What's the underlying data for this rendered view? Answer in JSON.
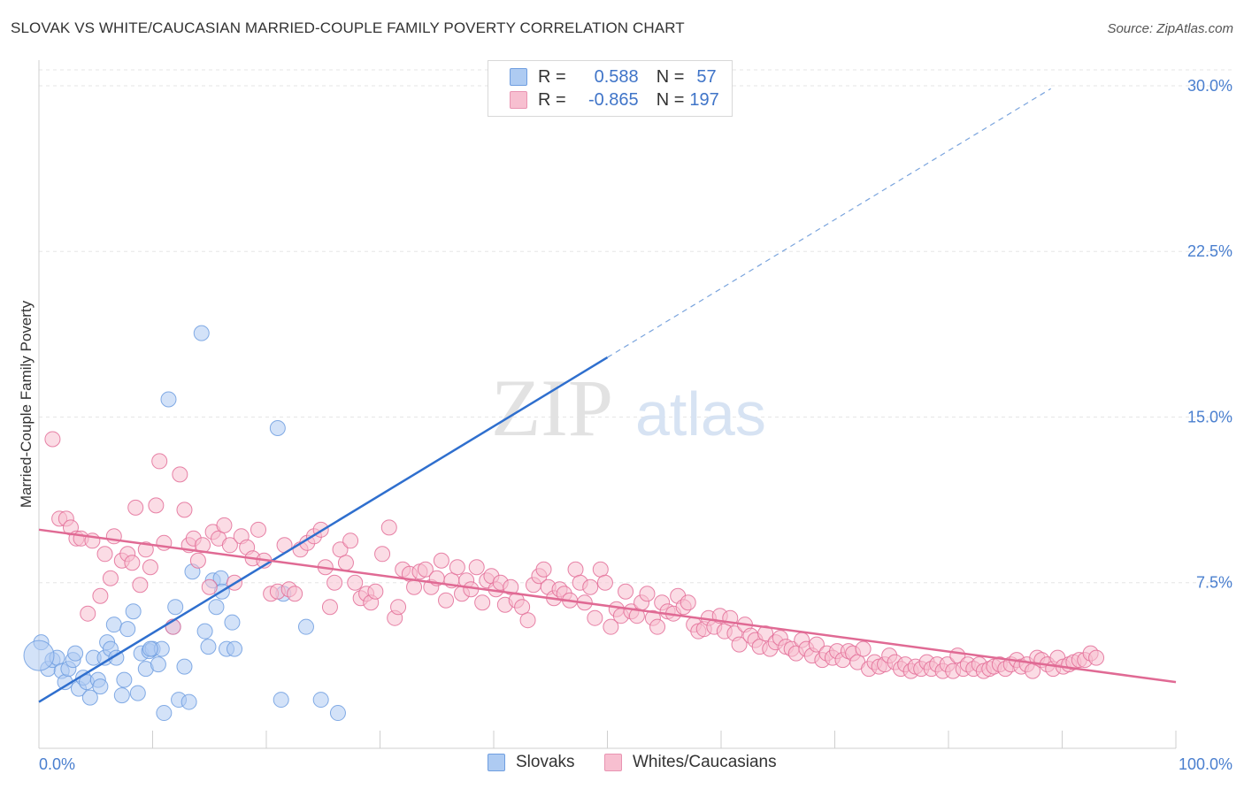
{
  "title": "SLOVAK VS WHITE/CAUCASIAN MARRIED-COUPLE FAMILY POVERTY CORRELATION CHART",
  "source": "Source: ZipAtlas.com",
  "watermark": {
    "zip": "ZIP",
    "atlas": "atlas"
  },
  "legend": {
    "r_label": "R =",
    "n_label": "N =",
    "series": [
      {
        "name": "Slovaks",
        "r": "0.588",
        "n": "57",
        "fill": "#aecbf2",
        "stroke": "#6f9ee0"
      },
      {
        "name": "Whites/Caucasians",
        "r": "-0.865",
        "n": "197",
        "fill": "#f7bfd0",
        "stroke": "#e994b2"
      }
    ]
  },
  "chart_data": {
    "type": "scatter",
    "title": "SLOVAK VS WHITE/CAUCASIAN MARRIED-COUPLE FAMILY POVERTY CORRELATION CHART",
    "xlabel": "",
    "ylabel": "Married-Couple Family Poverty",
    "xlim": [
      0,
      100
    ],
    "ylim": [
      0,
      30
    ],
    "x_tick_labels": [
      "0.0%",
      "100.0%"
    ],
    "y_ticks": [
      7.5,
      15.0,
      22.5,
      30.0
    ],
    "y_tick_labels": [
      "7.5%",
      "15.0%",
      "22.5%",
      "30.0%"
    ],
    "grid": true,
    "series": [
      {
        "name": "Slovaks",
        "color": "#6f9ee0",
        "fill": "#aecbf2",
        "trend": {
          "x0": 0,
          "y0": 2.1,
          "x1": 50,
          "y1": 17.7,
          "dashed_to_x": 89
        },
        "points": [
          [
            0.2,
            4.8
          ],
          [
            0.8,
            3.6
          ],
          [
            1.2,
            4.0
          ],
          [
            1.6,
            4.1
          ],
          [
            2.0,
            3.5
          ],
          [
            2.3,
            3.0
          ],
          [
            2.6,
            3.6
          ],
          [
            3.0,
            4.0
          ],
          [
            3.2,
            4.3
          ],
          [
            3.5,
            2.7
          ],
          [
            3.9,
            3.2
          ],
          [
            4.2,
            3.0
          ],
          [
            4.5,
            2.3
          ],
          [
            4.8,
            4.1
          ],
          [
            5.2,
            3.1
          ],
          [
            5.4,
            2.8
          ],
          [
            5.8,
            4.1
          ],
          [
            6.0,
            4.8
          ],
          [
            6.3,
            4.5
          ],
          [
            6.6,
            5.6
          ],
          [
            6.8,
            4.1
          ],
          [
            7.3,
            2.4
          ],
          [
            7.5,
            3.1
          ],
          [
            7.8,
            5.4
          ],
          [
            8.3,
            6.2
          ],
          [
            8.7,
            2.5
          ],
          [
            9.0,
            4.3
          ],
          [
            9.4,
            3.6
          ],
          [
            9.7,
            4.4
          ],
          [
            10.0,
            4.5
          ],
          [
            10.5,
            3.8
          ],
          [
            10.8,
            4.5
          ],
          [
            11.0,
            1.6
          ],
          [
            11.4,
            15.8
          ],
          [
            11.8,
            5.5
          ],
          [
            12.0,
            6.4
          ],
          [
            12.3,
            2.2
          ],
          [
            12.8,
            3.7
          ],
          [
            13.5,
            8.0
          ],
          [
            14.3,
            18.8
          ],
          [
            14.6,
            5.3
          ],
          [
            14.9,
            4.6
          ],
          [
            15.3,
            7.6
          ],
          [
            15.6,
            6.4
          ],
          [
            16.0,
            7.7
          ],
          [
            16.5,
            4.5
          ],
          [
            17.0,
            5.7
          ],
          [
            21.0,
            14.5
          ],
          [
            21.3,
            2.2
          ],
          [
            21.5,
            7.0
          ],
          [
            23.5,
            5.5
          ],
          [
            24.8,
            2.2
          ],
          [
            26.3,
            1.6
          ],
          [
            13.2,
            2.1
          ],
          [
            17.2,
            4.5
          ],
          [
            16.1,
            7.1
          ],
          [
            9.8,
            4.5
          ]
        ]
      },
      {
        "name": "Whites/Caucasians",
        "color": "#e36d98",
        "fill": "#f7bfd0",
        "trend": {
          "x0": 0,
          "y0": 9.9,
          "x1": 100,
          "y1": 3.0
        },
        "points": [
          [
            1.2,
            14.0
          ],
          [
            1.8,
            10.4
          ],
          [
            2.4,
            10.4
          ],
          [
            2.8,
            10.0
          ],
          [
            3.3,
            9.5
          ],
          [
            3.7,
            9.5
          ],
          [
            4.3,
            6.1
          ],
          [
            4.7,
            9.4
          ],
          [
            5.4,
            6.9
          ],
          [
            5.8,
            8.8
          ],
          [
            6.3,
            7.7
          ],
          [
            6.6,
            9.6
          ],
          [
            7.3,
            8.5
          ],
          [
            7.8,
            8.8
          ],
          [
            8.2,
            8.4
          ],
          [
            8.5,
            10.9
          ],
          [
            8.9,
            7.4
          ],
          [
            9.4,
            9.0
          ],
          [
            9.8,
            8.2
          ],
          [
            10.3,
            11.0
          ],
          [
            10.6,
            13.0
          ],
          [
            11.0,
            9.3
          ],
          [
            11.8,
            5.5
          ],
          [
            12.4,
            12.4
          ],
          [
            12.8,
            10.8
          ],
          [
            13.2,
            9.2
          ],
          [
            13.6,
            9.5
          ],
          [
            14.0,
            8.5
          ],
          [
            14.4,
            9.2
          ],
          [
            15.0,
            7.3
          ],
          [
            15.3,
            9.8
          ],
          [
            15.8,
            9.5
          ],
          [
            16.3,
            10.1
          ],
          [
            16.8,
            9.2
          ],
          [
            17.2,
            7.5
          ],
          [
            17.8,
            9.6
          ],
          [
            18.3,
            9.1
          ],
          [
            18.8,
            8.6
          ],
          [
            19.3,
            9.9
          ],
          [
            19.8,
            8.5
          ],
          [
            20.4,
            7.0
          ],
          [
            21.0,
            7.1
          ],
          [
            21.6,
            9.2
          ],
          [
            22.0,
            7.2
          ],
          [
            22.5,
            7.0
          ],
          [
            23.0,
            9.0
          ],
          [
            23.6,
            9.3
          ],
          [
            24.2,
            9.6
          ],
          [
            24.8,
            9.9
          ],
          [
            25.2,
            8.2
          ],
          [
            25.6,
            6.4
          ],
          [
            26.0,
            7.5
          ],
          [
            26.5,
            9.0
          ],
          [
            27.0,
            8.4
          ],
          [
            27.4,
            9.4
          ],
          [
            27.8,
            7.5
          ],
          [
            28.3,
            6.8
          ],
          [
            28.8,
            7.0
          ],
          [
            29.2,
            6.6
          ],
          [
            29.6,
            7.1
          ],
          [
            30.2,
            8.8
          ],
          [
            30.8,
            10.0
          ],
          [
            31.3,
            5.9
          ],
          [
            31.6,
            6.4
          ],
          [
            32.0,
            8.1
          ],
          [
            32.6,
            7.9
          ],
          [
            33.0,
            7.3
          ],
          [
            33.5,
            8.0
          ],
          [
            34.0,
            8.1
          ],
          [
            34.5,
            7.3
          ],
          [
            35.0,
            7.7
          ],
          [
            35.4,
            8.5
          ],
          [
            35.8,
            6.7
          ],
          [
            36.3,
            7.6
          ],
          [
            36.8,
            8.2
          ],
          [
            37.2,
            7.0
          ],
          [
            37.6,
            7.6
          ],
          [
            38.0,
            7.2
          ],
          [
            38.5,
            8.2
          ],
          [
            39.0,
            6.6
          ],
          [
            39.4,
            7.6
          ],
          [
            39.8,
            7.8
          ],
          [
            40.2,
            7.2
          ],
          [
            40.6,
            7.5
          ],
          [
            41.0,
            6.5
          ],
          [
            41.5,
            7.3
          ],
          [
            42.0,
            6.7
          ],
          [
            42.5,
            6.4
          ],
          [
            43.0,
            5.8
          ],
          [
            43.5,
            7.4
          ],
          [
            44.0,
            7.8
          ],
          [
            44.4,
            8.1
          ],
          [
            44.8,
            7.3
          ],
          [
            45.3,
            6.8
          ],
          [
            45.8,
            7.2
          ],
          [
            46.2,
            7.0
          ],
          [
            46.7,
            6.7
          ],
          [
            47.2,
            8.1
          ],
          [
            47.6,
            7.5
          ],
          [
            48.0,
            6.6
          ],
          [
            48.5,
            7.3
          ],
          [
            48.9,
            5.9
          ],
          [
            49.4,
            8.1
          ],
          [
            49.8,
            7.5
          ],
          [
            50.3,
            5.5
          ],
          [
            50.8,
            6.3
          ],
          [
            51.2,
            6.0
          ],
          [
            51.6,
            7.1
          ],
          [
            52.1,
            6.2
          ],
          [
            52.6,
            6.0
          ],
          [
            53.0,
            6.6
          ],
          [
            53.5,
            7.0
          ],
          [
            54.0,
            5.9
          ],
          [
            54.4,
            5.5
          ],
          [
            54.8,
            6.6
          ],
          [
            55.3,
            6.2
          ],
          [
            55.8,
            6.1
          ],
          [
            56.2,
            6.9
          ],
          [
            56.7,
            6.4
          ],
          [
            57.1,
            6.6
          ],
          [
            57.6,
            5.6
          ],
          [
            58.0,
            5.3
          ],
          [
            58.5,
            5.4
          ],
          [
            58.9,
            5.9
          ],
          [
            59.4,
            5.5
          ],
          [
            59.9,
            6.0
          ],
          [
            60.3,
            5.3
          ],
          [
            60.8,
            5.9
          ],
          [
            61.2,
            5.2
          ],
          [
            61.6,
            4.7
          ],
          [
            62.1,
            5.6
          ],
          [
            62.6,
            5.1
          ],
          [
            63.0,
            4.9
          ],
          [
            63.4,
            4.6
          ],
          [
            63.9,
            5.2
          ],
          [
            64.3,
            4.5
          ],
          [
            64.8,
            4.8
          ],
          [
            65.2,
            5.0
          ],
          [
            65.7,
            4.6
          ],
          [
            66.2,
            4.5
          ],
          [
            66.6,
            4.3
          ],
          [
            67.1,
            4.9
          ],
          [
            67.5,
            4.5
          ],
          [
            68.0,
            4.2
          ],
          [
            68.4,
            4.7
          ],
          [
            68.9,
            4.0
          ],
          [
            69.3,
            4.3
          ],
          [
            69.8,
            4.1
          ],
          [
            70.2,
            4.4
          ],
          [
            70.7,
            4.0
          ],
          [
            71.2,
            4.4
          ],
          [
            71.6,
            4.3
          ],
          [
            72.0,
            3.9
          ],
          [
            72.5,
            4.5
          ],
          [
            73.0,
            3.6
          ],
          [
            73.5,
            3.9
          ],
          [
            73.9,
            3.7
          ],
          [
            74.4,
            3.8
          ],
          [
            74.8,
            4.2
          ],
          [
            75.3,
            3.9
          ],
          [
            75.8,
            3.6
          ],
          [
            76.2,
            3.8
          ],
          [
            76.7,
            3.5
          ],
          [
            77.1,
            3.7
          ],
          [
            77.6,
            3.6
          ],
          [
            78.1,
            3.9
          ],
          [
            78.5,
            3.6
          ],
          [
            79.0,
            3.8
          ],
          [
            79.5,
            3.5
          ],
          [
            79.9,
            3.8
          ],
          [
            80.4,
            3.5
          ],
          [
            80.8,
            4.2
          ],
          [
            81.3,
            3.6
          ],
          [
            81.7,
            3.8
          ],
          [
            82.2,
            3.6
          ],
          [
            82.7,
            3.8
          ],
          [
            83.1,
            3.5
          ],
          [
            83.6,
            3.6
          ],
          [
            84.0,
            3.7
          ],
          [
            84.5,
            3.8
          ],
          [
            85.0,
            3.6
          ],
          [
            85.5,
            3.8
          ],
          [
            86.0,
            4.0
          ],
          [
            86.4,
            3.7
          ],
          [
            86.9,
            3.8
          ],
          [
            87.4,
            3.5
          ],
          [
            87.8,
            4.1
          ],
          [
            88.2,
            4.0
          ],
          [
            88.7,
            3.8
          ],
          [
            89.2,
            3.6
          ],
          [
            89.6,
            4.1
          ],
          [
            90.1,
            3.7
          ],
          [
            90.6,
            3.8
          ],
          [
            91.0,
            3.9
          ],
          [
            91.5,
            4.0
          ],
          [
            92.0,
            4.0
          ],
          [
            92.5,
            4.3
          ],
          [
            93.0,
            4.1
          ]
        ]
      }
    ]
  }
}
